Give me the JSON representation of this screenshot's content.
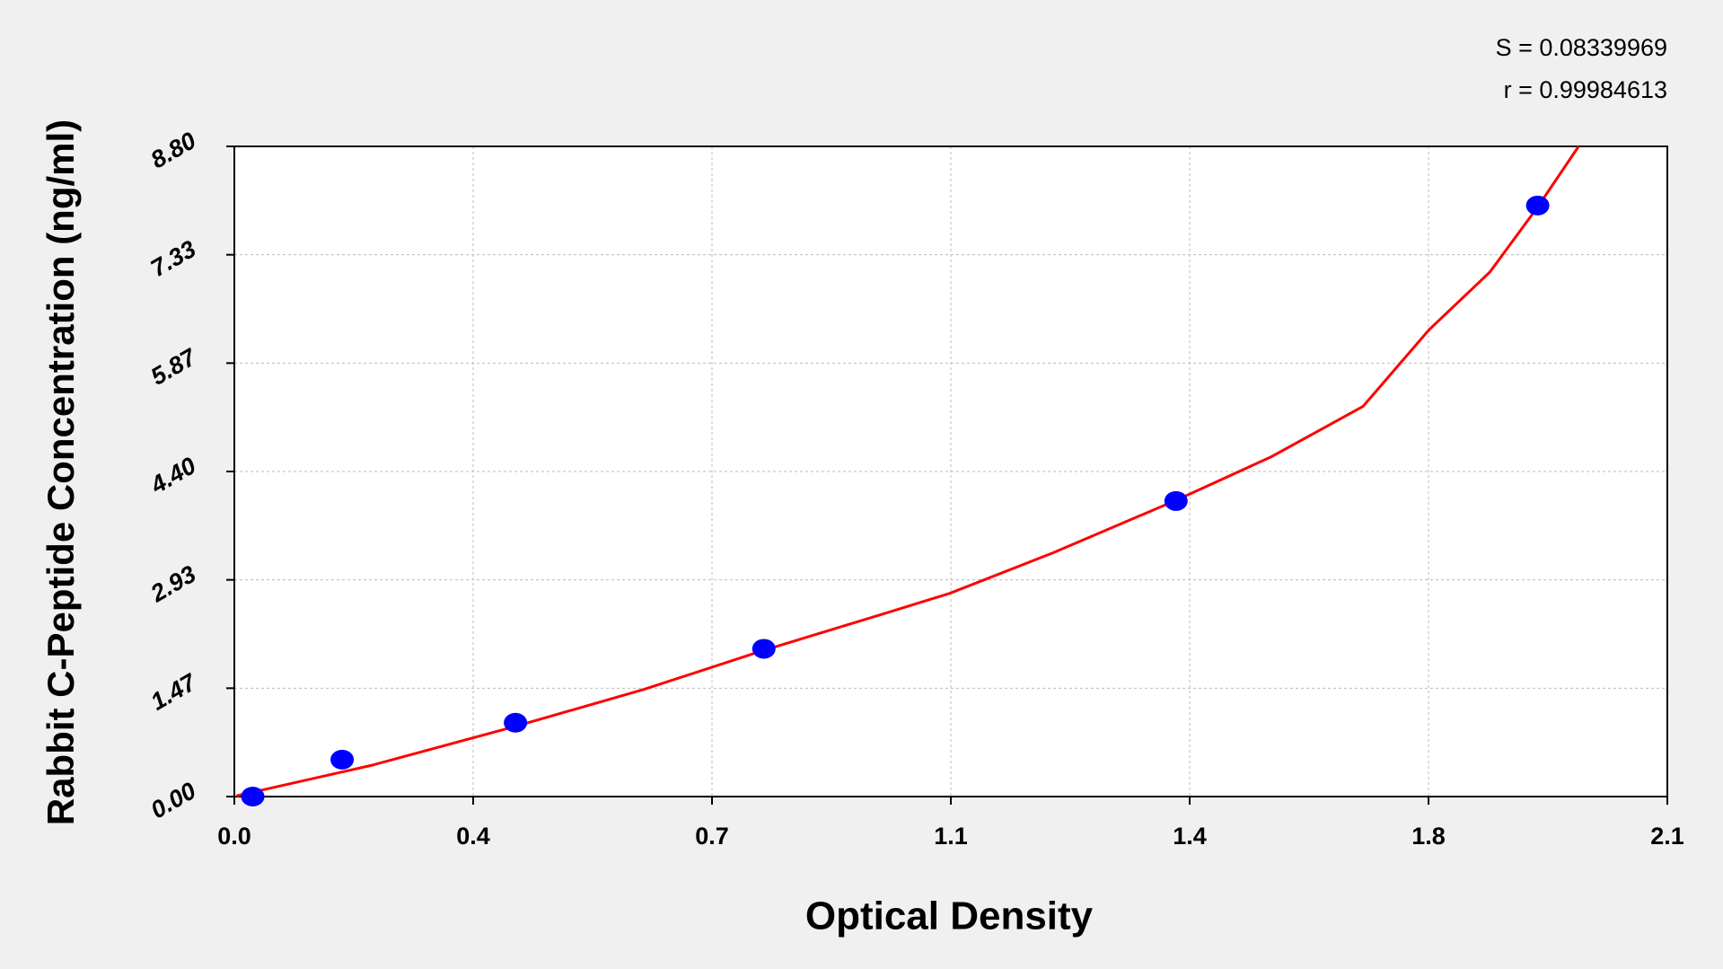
{
  "chart_data": {
    "type": "scatter",
    "annotations": [
      "S = 0.08339969",
      "r = 0.99984613"
    ],
    "x_label": "Optical Density",
    "y_label": "Rabbit C-Peptide Concentration (ng/ml)",
    "series": [
      {
        "color": "#0000ff",
        "x": [
          0.027,
          0.158,
          0.412,
          0.776,
          1.38,
          1.91
        ],
        "values": [
          0,
          0.5,
          1,
          2,
          4,
          8
        ]
      }
    ],
    "curve": {
      "color": "#ff0000",
      "x": [
        0.003,
        0.2,
        0.412,
        0.6,
        0.776,
        0.95,
        1.048,
        1.2,
        1.38,
        1.52,
        1.654,
        1.751,
        1.84,
        1.91,
        1.97
      ],
      "values": [
        0.01,
        0.42,
        0.95,
        1.45,
        1.98,
        2.47,
        2.75,
        3.3,
        4.01,
        4.6,
        5.28,
        6.32,
        7.1,
        7.98,
        8.8
      ]
    },
    "xlim": [
      0,
      2.1
    ],
    "ylim": [
      0,
      8.8
    ],
    "xticks": [
      {
        "value": 0,
        "label": "0.0"
      },
      {
        "value": 0.35,
        "label": "0.4"
      },
      0.7,
      {
        "value": 1.05,
        "label": "1.1"
      },
      1.4,
      {
        "value": 1.75,
        "label": "1.8"
      },
      2.1
    ],
    "yticks": [
      {
        "value": 0,
        "label": "0.00"
      },
      {
        "value": 1.4667,
        "label": "1.47"
      },
      {
        "value": 2.9333,
        "label": "2.93"
      },
      {
        "value": 4.4,
        "label": "4.40"
      },
      {
        "value": 5.8667,
        "label": "5.87"
      },
      {
        "value": 7.3333,
        "label": "7.33"
      },
      {
        "value": 8.8,
        "label": "8.80"
      }
    ],
    "grid": true
  }
}
